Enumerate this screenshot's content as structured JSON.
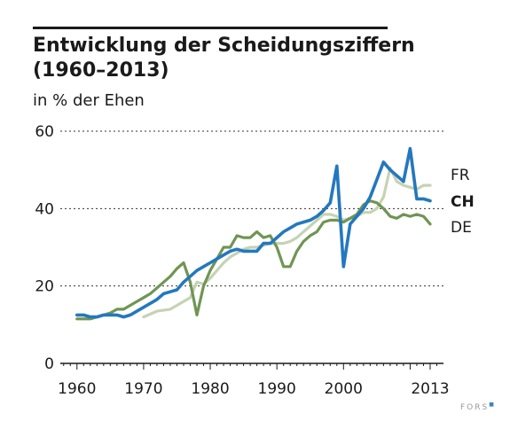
{
  "title_line1": "Entwicklung der Scheidungsziffern",
  "title_line2": "(1960–2013)",
  "brand": "FORS",
  "chart_data": {
    "type": "line",
    "title": "Entwicklung der Scheidungsziffern (1960–2013)",
    "ylabel": "in % der Ehen",
    "xlabel": "",
    "xlim": [
      1957.5,
      2015
    ],
    "ylim": [
      0,
      60
    ],
    "xticks": [
      1960,
      1970,
      1980,
      1990,
      2000,
      2013
    ],
    "xtick_labels": [
      "1960",
      "1970",
      "1980",
      "1990",
      "2000",
      "2013"
    ],
    "yticks": [
      0,
      20,
      40,
      60
    ],
    "ytick_labels": [
      "0",
      "20",
      "40",
      "60"
    ],
    "grid": "dashed horizontal",
    "legend": "end-of-line labels",
    "series": [
      {
        "name": "FR",
        "color": "#c5d3b4",
        "bold": false,
        "x": [
          1970,
          1972,
          1974,
          1975,
          1976,
          1977,
          1978,
          1979,
          1980,
          1981,
          1982,
          1983,
          1984,
          1985,
          1986,
          1987,
          1988,
          1989,
          1990,
          1991,
          1992,
          1993,
          1994,
          1995,
          1996,
          1997,
          1998,
          1999,
          2000,
          2001,
          2002,
          2003,
          2004,
          2005,
          2006,
          2007,
          2008,
          2009,
          2010,
          2011,
          2012,
          2013
        ],
        "y": [
          12,
          13.5,
          14,
          15,
          16,
          17,
          21,
          20.5,
          22,
          24,
          26,
          27.5,
          28.5,
          29.5,
          30,
          30,
          30.5,
          31,
          31,
          31,
          31.5,
          32.5,
          34,
          35.5,
          37,
          38.5,
          38.5,
          38,
          37,
          37.5,
          38,
          39,
          39,
          40,
          43,
          50.5,
          47,
          46,
          45.5,
          45,
          46,
          46
        ]
      },
      {
        "name": "CH",
        "color": "#2378be",
        "bold": true,
        "x": [
          1960,
          1961,
          1962,
          1963,
          1964,
          1965,
          1966,
          1967,
          1968,
          1969,
          1970,
          1971,
          1972,
          1973,
          1974,
          1975,
          1976,
          1977,
          1978,
          1979,
          1980,
          1981,
          1982,
          1983,
          1984,
          1985,
          1986,
          1987,
          1988,
          1989,
          1990,
          1991,
          1992,
          1993,
          1994,
          1995,
          1996,
          1997,
          1998,
          1999,
          2000,
          2001,
          2002,
          2003,
          2004,
          2005,
          2006,
          2007,
          2008,
          2009,
          2010,
          2011,
          2012,
          2013
        ],
        "y": [
          12.5,
          12.5,
          12,
          12,
          12.5,
          12.5,
          12.5,
          12,
          12.5,
          13.5,
          14.5,
          15.5,
          16.5,
          18,
          18.5,
          19,
          21,
          22.5,
          24,
          25,
          26,
          27,
          28,
          29,
          29.5,
          29,
          29,
          29,
          31,
          31,
          32.5,
          34,
          35,
          36,
          36.5,
          37,
          38,
          39.5,
          41.5,
          51,
          25,
          36,
          38,
          40,
          43,
          47.5,
          52,
          50,
          48.5,
          47,
          55.5,
          42.5,
          42.5,
          42
        ]
      },
      {
        "name": "DE",
        "color": "#6f9553",
        "bold": false,
        "x": [
          1960,
          1961,
          1962,
          1963,
          1964,
          1965,
          1966,
          1967,
          1968,
          1969,
          1970,
          1971,
          1972,
          1973,
          1974,
          1975,
          1976,
          1977,
          1978,
          1979,
          1980,
          1981,
          1982,
          1983,
          1984,
          1985,
          1986,
          1987,
          1988,
          1989,
          1990,
          1991,
          1992,
          1993,
          1994,
          1995,
          1996,
          1997,
          1998,
          1999,
          2000,
          2001,
          2002,
          2003,
          2004,
          2005,
          2006,
          2007,
          2008,
          2009,
          2010,
          2011,
          2012,
          2013
        ],
        "y": [
          11.5,
          11.5,
          11.5,
          12,
          12.5,
          13,
          14,
          14,
          15,
          16,
          17,
          18,
          19.5,
          21,
          22.5,
          24.5,
          26,
          21,
          12.5,
          20,
          24,
          27,
          30,
          30,
          33,
          32.5,
          32.5,
          34,
          32.5,
          33,
          30,
          25,
          25,
          29,
          31.5,
          33,
          34,
          36.5,
          37,
          37,
          36.5,
          37.5,
          38.5,
          41,
          42,
          41.5,
          40,
          38,
          37.5,
          38.5,
          38,
          38.5,
          38,
          36
        ]
      }
    ]
  }
}
